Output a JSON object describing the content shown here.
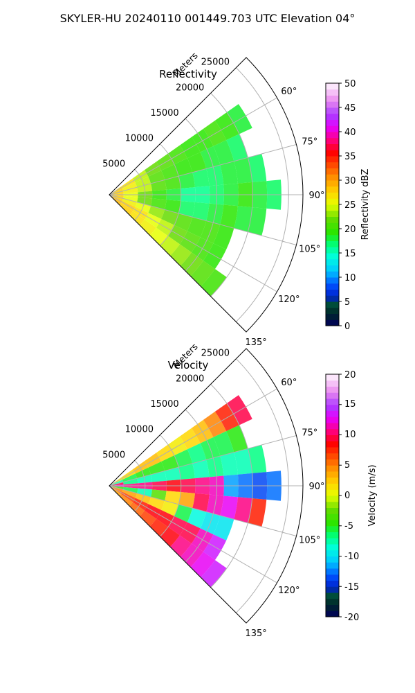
{
  "figure": {
    "suptitle": "SKYLER-HU  20240110  001449.703 UTC Elevation 04°"
  },
  "panels": [
    {
      "title": "Reflectivity",
      "range_label": "Meters",
      "range_ticks": [
        "5000",
        "10000",
        "15000",
        "20000",
        "25000"
      ],
      "azimuth_ticks": [
        "60°",
        "75°",
        "90°",
        "105°",
        "120°",
        "135°"
      ],
      "colorbar_label": "Reflectivity dBZ",
      "colorbar_ticks": [
        "0",
        "5",
        "10",
        "15",
        "20",
        "25",
        "30",
        "35",
        "40",
        "45",
        "50"
      ]
    },
    {
      "title": "Velocity",
      "range_label": "Meters",
      "range_ticks": [
        "5000",
        "10000",
        "15000",
        "20000",
        "25000"
      ],
      "azimuth_ticks": [
        "60°",
        "75°",
        "90°",
        "105°",
        "120°",
        "135°"
      ],
      "colorbar_label": "Velocity (m/s)",
      "colorbar_ticks": [
        "-20",
        "-15",
        "-10",
        "-5",
        "0",
        "5",
        "10",
        "15",
        "20"
      ]
    }
  ],
  "chart_data": [
    {
      "type": "heatmap",
      "title": "Reflectivity",
      "projection": "polar",
      "theta_range_deg": [
        45,
        135
      ],
      "r_range_m": [
        0,
        27000
      ],
      "r_ticks": [
        5000,
        10000,
        15000,
        20000,
        25000
      ],
      "theta_ticks_deg": [
        60,
        75,
        90,
        105,
        120,
        135
      ],
      "colorbar": {
        "label": "Reflectivity dBZ",
        "range": [
          0,
          50
        ],
        "ticks": [
          0,
          5,
          10,
          15,
          20,
          25,
          30,
          35,
          40,
          45,
          50
        ]
      },
      "azimuths_deg": [
        50,
        60,
        70,
        80,
        90,
        100,
        110,
        120,
        130
      ],
      "ranges_m": [
        1000,
        3000,
        5000,
        7000,
        9000,
        11000,
        13000,
        15000,
        17000,
        19000,
        21000,
        23000,
        25000
      ],
      "values": [
        [
          null,
          null,
          null,
          null,
          null,
          null,
          null,
          null,
          null,
          null,
          null,
          null,
          null
        ],
        [
          28,
          27,
          24,
          22,
          21,
          20,
          19,
          19,
          20,
          19,
          18,
          null,
          null
        ],
        [
          28,
          26,
          24,
          21,
          20,
          19,
          19,
          18,
          18,
          17,
          null,
          null,
          null
        ],
        [
          28,
          26,
          24,
          21,
          20,
          18,
          17,
          17,
          18,
          18,
          17,
          null,
          null
        ],
        [
          28,
          25,
          22,
          19,
          18,
          16,
          16,
          17,
          18,
          19,
          18,
          17,
          null
        ],
        [
          28,
          25,
          22,
          20,
          19,
          17,
          17,
          18,
          19,
          18,
          18,
          null,
          null
        ],
        [
          28,
          26,
          25,
          23,
          22,
          21,
          20,
          20,
          19,
          null,
          null,
          null,
          null
        ],
        [
          29,
          28,
          27,
          25,
          24,
          22,
          21,
          20,
          19,
          null,
          null,
          null,
          null
        ],
        [
          29,
          28,
          27,
          26,
          25,
          24,
          23,
          22,
          21,
          20,
          null,
          null,
          null
        ]
      ]
    },
    {
      "type": "heatmap",
      "title": "Velocity",
      "projection": "polar",
      "theta_range_deg": [
        45,
        135
      ],
      "r_range_m": [
        0,
        27000
      ],
      "r_ticks": [
        5000,
        10000,
        15000,
        20000,
        25000
      ],
      "theta_ticks_deg": [
        60,
        75,
        90,
        105,
        120,
        135
      ],
      "colorbar": {
        "label": "Velocity (m/s)",
        "range": [
          -20,
          20
        ],
        "ticks": [
          -20,
          -15,
          -10,
          -5,
          0,
          5,
          10,
          15,
          20
        ]
      },
      "azimuths_deg": [
        50,
        60,
        70,
        80,
        90,
        100,
        110,
        120,
        130
      ],
      "ranges_m": [
        1000,
        3000,
        5000,
        7000,
        9000,
        11000,
        13000,
        15000,
        17000,
        19000,
        21000,
        23000,
        25000
      ],
      "values": [
        [
          null,
          null,
          null,
          null,
          null,
          null,
          null,
          null,
          null,
          null,
          null,
          null,
          null
        ],
        [
          1,
          2,
          3,
          3,
          2,
          1,
          2,
          3,
          5,
          8,
          10,
          null,
          null
        ],
        [
          -8,
          -6,
          -5,
          -5,
          -5,
          -6,
          -7,
          -6,
          -6,
          -5,
          null,
          null,
          null
        ],
        [
          10,
          -7,
          -8,
          -8,
          -8,
          -7,
          -8,
          -7,
          -8,
          -8,
          -7,
          null,
          null
        ],
        [
          13,
          11,
          11,
          10,
          9,
          10,
          11,
          12,
          -12,
          -13,
          -14,
          -13,
          null
        ],
        [
          -4,
          -6,
          -8,
          -3,
          2,
          4,
          10,
          12,
          13,
          11,
          8,
          null,
          null
        ],
        [
          5,
          4,
          3,
          2,
          1,
          -6,
          -9,
          -10,
          -10,
          null,
          null,
          null,
          null
        ],
        [
          6,
          7,
          8,
          9,
          9,
          10,
          10,
          12,
          14,
          null,
          null,
          null,
          null
        ],
        [
          4,
          5,
          6,
          7,
          8,
          9,
          11,
          12,
          13,
          14,
          null,
          null,
          null
        ]
      ]
    }
  ]
}
